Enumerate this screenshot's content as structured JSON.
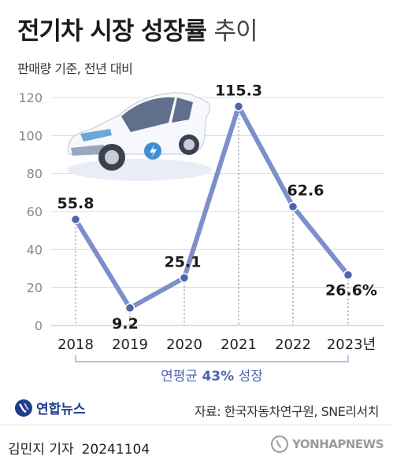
{
  "title_main": "전기차 시장 성장률",
  "title_sub": "추이",
  "subtitle": "판매량 기준, 전년 대비",
  "chart_data": {
    "type": "line",
    "categories": [
      "2018",
      "2019",
      "2020",
      "2021",
      "2022",
      "2023년"
    ],
    "values": [
      55.8,
      9.2,
      25.1,
      115.3,
      62.6,
      26.6
    ],
    "value_labels": [
      "55.8",
      "9.2",
      "25.1",
      "115.3",
      "62.6",
      "26.6%"
    ],
    "ylim": [
      0,
      120
    ],
    "yticks": [
      "0",
      "20",
      "40",
      "60",
      "80",
      "100",
      "120"
    ],
    "grid": true,
    "annotation": {
      "prefix": "연평균 ",
      "highlight": "43%",
      "suffix": " 성장"
    },
    "colors": {
      "line": "#7d8fcb",
      "marker": "#4f64b0",
      "grid": "#dcdcdc",
      "annotation": "#4f64b0"
    }
  },
  "logo_text": "연합뉴스",
  "source": "자료: 한국자동차연구원, SNE리서치",
  "reporter": "김민지 기자",
  "date": "20241104",
  "watermark": "YONHAPNEWS"
}
